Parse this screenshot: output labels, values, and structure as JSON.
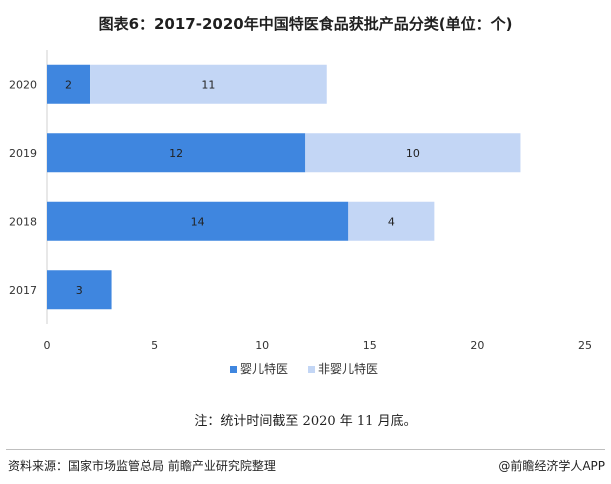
{
  "title": "图表6：2017-2020年中国特医食品获批产品分类(单位：个)",
  "note": "注：统计时间截至 2020 年 11 月底。",
  "source": "资料来源：国家市场监管总局 前瞻产业研究院整理",
  "brand": "@前瞻经济学人APP",
  "colors": {
    "infant": "#3f86df",
    "non_infant": "#c3d6f5"
  },
  "chart_data": {
    "type": "bar",
    "orientation": "horizontal",
    "stacked": true,
    "categories": [
      "2020",
      "2019",
      "2018",
      "2017"
    ],
    "series": [
      {
        "name": "婴儿特医",
        "values": [
          2,
          12,
          14,
          3
        ]
      },
      {
        "name": "非婴儿特医",
        "values": [
          11,
          10,
          4,
          0
        ]
      }
    ],
    "xlim": [
      0,
      25
    ],
    "xticks": [
      0,
      5,
      10,
      15,
      20,
      25
    ],
    "legend": "bottom",
    "grid": false
  }
}
